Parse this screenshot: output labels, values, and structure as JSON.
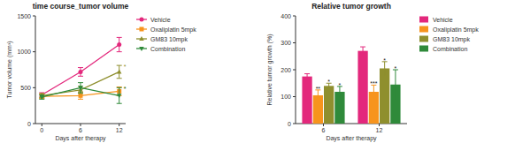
{
  "chart_data": [
    {
      "type": "line",
      "title": "time course_tumor volume",
      "x_label": "Days after therapy",
      "y_label": "Tumor volume (mm³)",
      "x": [
        0,
        6,
        12
      ],
      "xlim": [
        -1,
        13
      ],
      "xticks": [
        0,
        6,
        12
      ],
      "ylim": [
        0,
        1500
      ],
      "yticks": [
        0,
        500,
        1000,
        1500
      ],
      "grid": false,
      "legend": "right",
      "series": [
        {
          "name": "Vehicle",
          "color": "#e3287c",
          "marker": "circle",
          "values": [
            400,
            720,
            1100
          ],
          "errors": [
            30,
            60,
            100
          ],
          "significance": [
            null,
            null,
            null
          ]
        },
        {
          "name": "Oxaliplatin 5mpk",
          "color": "#f7941d",
          "marker": "square",
          "values": [
            380,
            390,
            450
          ],
          "errors": [
            30,
            50,
            60
          ],
          "significance": [
            null,
            null,
            "*"
          ]
        },
        {
          "name": "GM83 10mpk",
          "color": "#8f8f2e",
          "marker": "triangle",
          "values": [
            390,
            470,
            720
          ],
          "errors": [
            30,
            50,
            90
          ],
          "significance": [
            null,
            null,
            "*"
          ]
        },
        {
          "name": "Combination",
          "color": "#2f8a3a",
          "marker": "triangle-down",
          "values": [
            370,
            500,
            390
          ],
          "errors": [
            30,
            70,
            110
          ],
          "significance": [
            null,
            null,
            "*"
          ]
        }
      ]
    },
    {
      "type": "bar",
      "title": "Relative tumor growth",
      "x_label": "Days after therapy",
      "y_label": "Relative tumor growth (%)",
      "categories": [
        "6",
        "12"
      ],
      "ylim": [
        0,
        400
      ],
      "yticks": [
        0,
        100,
        200,
        300,
        400
      ],
      "grid": false,
      "legend": "right",
      "series": [
        {
          "name": "Vehicle",
          "color": "#e3287c",
          "values": [
            175,
            270
          ],
          "errors": [
            10,
            15
          ],
          "significance": [
            null,
            null
          ]
        },
        {
          "name": "Oxaliplatin 5mpk",
          "color": "#f7941d",
          "values": [
            105,
            118
          ],
          "errors": [
            20,
            25
          ],
          "significance": [
            "**",
            "***"
          ]
        },
        {
          "name": "GM83 10mpk",
          "color": "#8f8f2e",
          "values": [
            140,
            205
          ],
          "errors": [
            10,
            25
          ],
          "significance": [
            "*",
            "*"
          ]
        },
        {
          "name": "Combination",
          "color": "#2f8a3a",
          "values": [
            118,
            145
          ],
          "errors": [
            20,
            55
          ],
          "significance": [
            "*",
            "*"
          ]
        }
      ]
    }
  ]
}
